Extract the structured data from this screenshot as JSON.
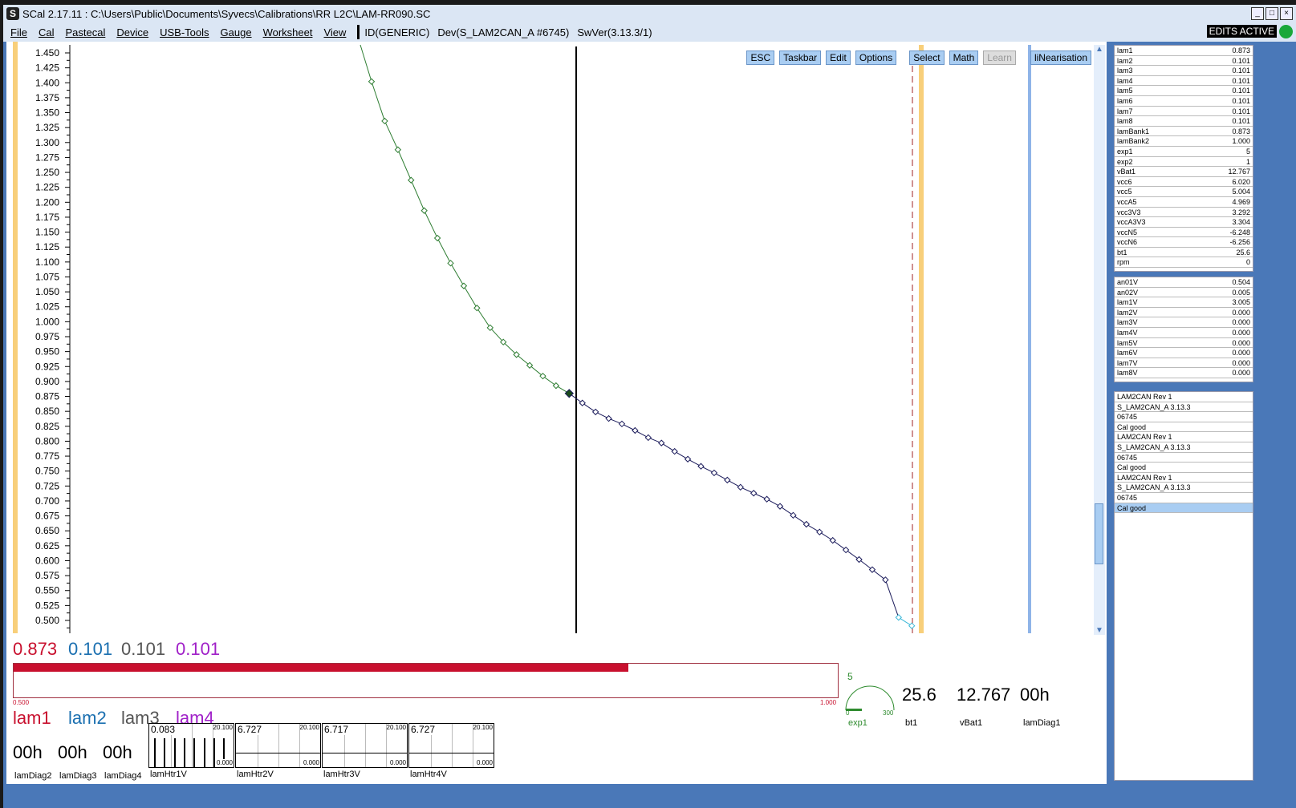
{
  "window": {
    "title": "SCal 2.17.11  :  C:\\Users\\Public\\Documents\\Syvecs\\Calibrations\\RR L2C\\LAM-RR090.SC",
    "logo": "S"
  },
  "menu": [
    "File",
    "Cal",
    "Pastecal",
    "Device",
    "USB-Tools",
    "Gauge",
    "Worksheet",
    "View"
  ],
  "info": [
    "ID(GENERIC)",
    "Dev(S_LAM2CAN_A #6745)",
    "SwVer(3.13.3/1)"
  ],
  "status": {
    "edits": "EDITS ACTIVE",
    "led_color": "#19a83a"
  },
  "toolbar": [
    "ESC",
    "Taskbar",
    "Edit",
    "Options",
    "Select",
    "Math",
    "Learn",
    "liNearisation"
  ],
  "chart_data": {
    "type": "line",
    "ylim": [
      0.5,
      1.45
    ],
    "ytick_step": 0.025,
    "y": [
      1.402,
      1.336,
      1.288,
      1.237,
      1.186,
      1.14,
      1.098,
      1.06,
      1.023,
      0.99,
      0.966,
      0.945,
      0.927,
      0.909,
      0.893,
      0.88,
      0.864,
      0.849,
      0.838,
      0.829,
      0.818,
      0.806,
      0.797,
      0.783,
      0.77,
      0.758,
      0.747,
      0.735,
      0.723,
      0.713,
      0.703,
      0.691,
      0.676,
      0.661,
      0.648,
      0.634,
      0.618,
      0.602,
      0.585,
      0.568,
      0.505,
      0.491
    ],
    "selected_index": 15,
    "colors": {
      "before": "#2e7d32",
      "after": "#1a1a5a",
      "last": "#3cb8d8",
      "marker": "#1a4a1a"
    }
  },
  "live_values": [
    [
      "lam1",
      "0.873"
    ],
    [
      "lam2",
      "0.101"
    ],
    [
      "lam3",
      "0.101"
    ],
    [
      "lam4",
      "0.101"
    ],
    [
      "lam5",
      "0.101"
    ],
    [
      "lam6",
      "0.101"
    ],
    [
      "lam7",
      "0.101"
    ],
    [
      "lam8",
      "0.101"
    ],
    [
      "lamBank1",
      "0.873"
    ],
    [
      "lamBank2",
      "1.000"
    ],
    [
      "exp1",
      "5"
    ],
    [
      "exp2",
      "1"
    ],
    [
      "vBat1",
      "12.767"
    ],
    [
      "vcc6",
      "6.020"
    ],
    [
      "vcc5",
      "5.004"
    ],
    [
      "vccA5",
      "4.969"
    ],
    [
      "vcc3V3",
      "3.292"
    ],
    [
      "vccA3V3",
      "3.304"
    ],
    [
      "vccN5",
      "-6.248"
    ],
    [
      "vccN6",
      "-6.256"
    ],
    [
      "bt1",
      "25.6"
    ],
    [
      "rpm",
      "0"
    ]
  ],
  "voltages": [
    [
      "an01V",
      "0.504"
    ],
    [
      "an02V",
      "0.005"
    ],
    [
      "lam1V",
      "3.005"
    ],
    [
      "lam2V",
      "0.000"
    ],
    [
      "lam3V",
      "0.000"
    ],
    [
      "lam4V",
      "0.000"
    ],
    [
      "lam5V",
      "0.000"
    ],
    [
      "lam6V",
      "0.000"
    ],
    [
      "lam7V",
      "0.000"
    ],
    [
      "lam8V",
      "0.000"
    ]
  ],
  "devices": [
    "LAM2CAN Rev 1",
    "S_LAM2CAN_A 3.13.3",
    "06745",
    "Cal good",
    "LAM2CAN Rev 1",
    "S_LAM2CAN_A 3.13.3",
    "06745",
    "Cal good",
    "LAM2CAN Rev 1",
    "S_LAM2CAN_A 3.13.3",
    "06745",
    "Cal good"
  ],
  "gauges": {
    "lam_values": [
      {
        "v": "0.873",
        "c": "#c8102e"
      },
      {
        "v": "0.101",
        "c": "#1a6fb0"
      },
      {
        "v": "0.101",
        "c": "#555555"
      },
      {
        "v": "0.101",
        "c": "#a020c8"
      }
    ],
    "lam_names": [
      "lam1",
      "lam2",
      "lam3",
      "lam4"
    ],
    "bar": {
      "value": 0.873,
      "min": "0.500",
      "max": "1.000",
      "color": "#c8102e"
    },
    "diag": [
      {
        "v": "00h",
        "n": "lamDiag2"
      },
      {
        "v": "00h",
        "n": "lamDiag3"
      },
      {
        "v": "00h",
        "n": "lamDiag4"
      }
    ],
    "htr": [
      {
        "v": "0.083",
        "max": "20.100",
        "min": "0.000",
        "n": "lamHtr1V"
      },
      {
        "v": "6.727",
        "max": "20.100",
        "min": "0.000",
        "n": "lamHtr2V"
      },
      {
        "v": "6.717",
        "max": "20.100",
        "min": "0.000",
        "n": "lamHtr3V"
      },
      {
        "v": "6.727",
        "max": "20.100",
        "min": "0.000",
        "n": "lamHtr4V"
      }
    ],
    "dial": {
      "value": "5",
      "min": "0",
      "max": "300",
      "n": "exp1"
    },
    "readouts": [
      {
        "v": "25.6",
        "n": "bt1"
      },
      {
        "v": "12.767",
        "n": "vBat1"
      },
      {
        "v": "00h",
        "n": "lamDiag1"
      }
    ]
  }
}
